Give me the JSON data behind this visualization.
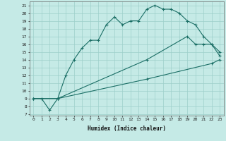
{
  "title": "",
  "xlabel": "Humidex (Indice chaleur)",
  "ylabel": "",
  "bg_color": "#c5eae6",
  "grid_color": "#9dcfca",
  "line_color": "#1a6e65",
  "line1": {
    "x": [
      0,
      1,
      2,
      3,
      4,
      5,
      6,
      7,
      8,
      9,
      10,
      11,
      12,
      13,
      14,
      15,
      16,
      17,
      18,
      19,
      20,
      21,
      22,
      23
    ],
    "y": [
      9,
      9,
      7.5,
      9,
      12,
      14,
      15.5,
      16.5,
      16.5,
      18.5,
      19.5,
      18.5,
      19,
      19,
      20.5,
      21,
      20.5,
      20.5,
      20,
      19,
      18.5,
      17,
      16,
      15
    ]
  },
  "line2": {
    "x": [
      0,
      3,
      14,
      19,
      20,
      21,
      22,
      23
    ],
    "y": [
      9,
      9,
      14,
      17,
      16,
      16,
      16,
      14.5
    ]
  },
  "line3": {
    "x": [
      0,
      3,
      14,
      22,
      23
    ],
    "y": [
      9,
      9,
      11.5,
      13.5,
      14
    ]
  },
  "xlim": [
    -0.5,
    23.5
  ],
  "ylim": [
    6.8,
    21.5
  ],
  "yticks": [
    7,
    8,
    9,
    10,
    11,
    12,
    13,
    14,
    15,
    16,
    17,
    18,
    19,
    20,
    21
  ],
  "xticks": [
    0,
    1,
    2,
    3,
    4,
    5,
    6,
    7,
    8,
    9,
    10,
    11,
    12,
    13,
    14,
    15,
    16,
    17,
    18,
    19,
    20,
    21,
    22,
    23
  ],
  "tick_fontsize": 4.5,
  "xlabel_fontsize": 5.5
}
